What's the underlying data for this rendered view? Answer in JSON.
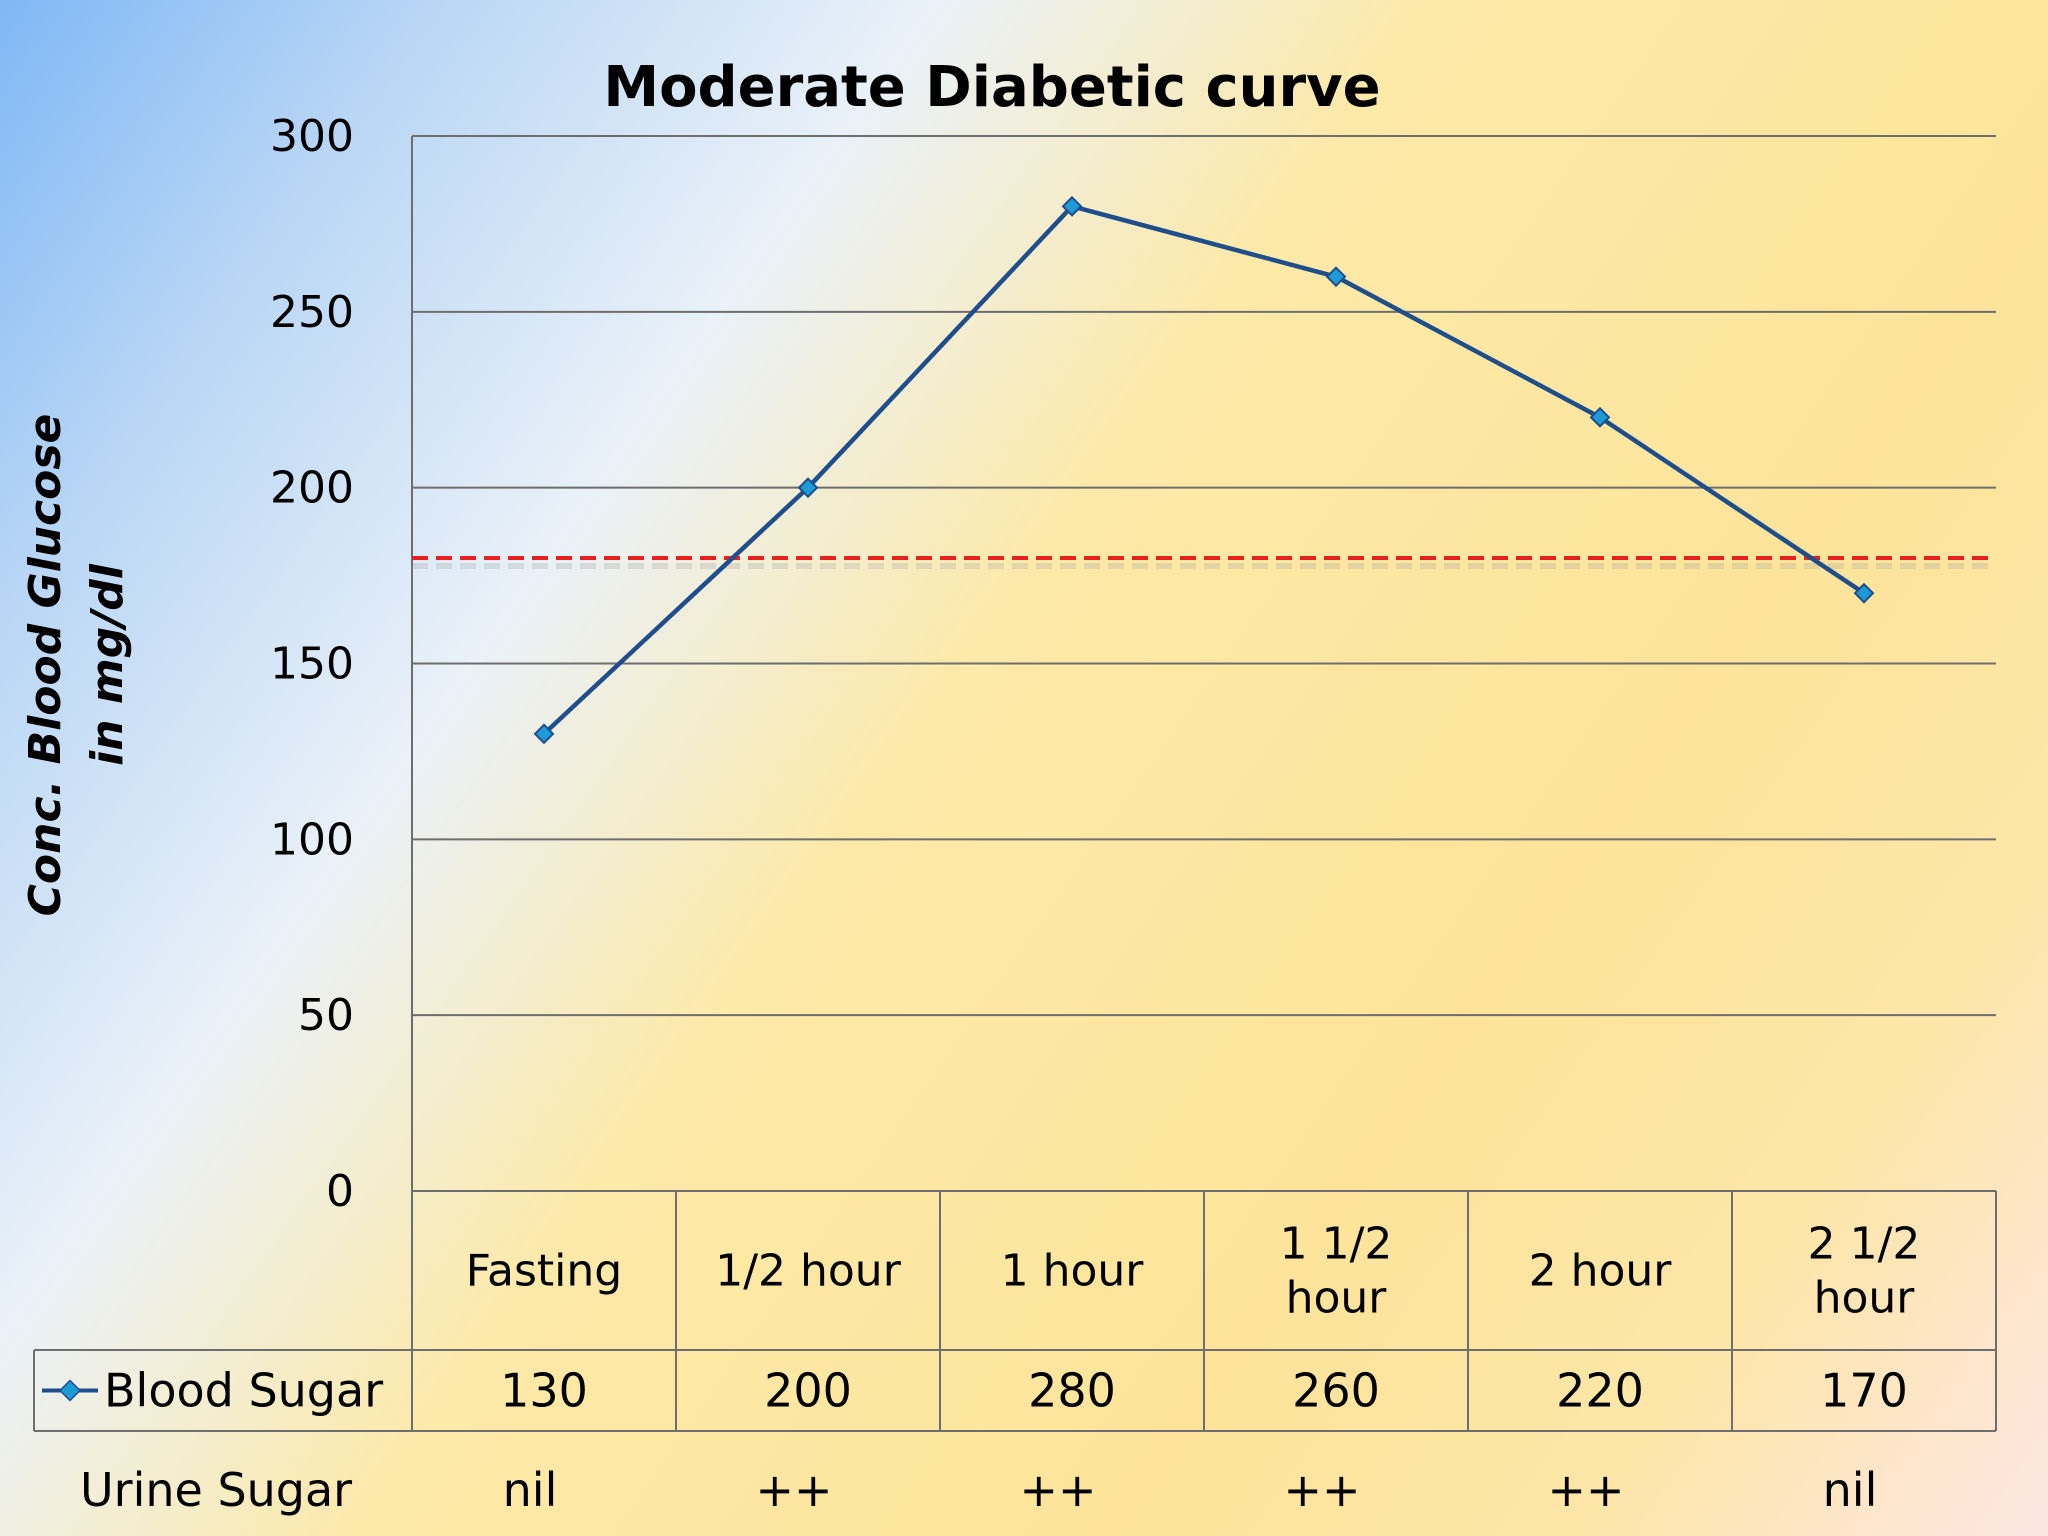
{
  "chart_data": {
    "type": "line",
    "title": "Moderate Diabetic curve",
    "ylabel_line1": "Conc.  Blood Glucose",
    "ylabel_line2": "in mg/dl",
    "ylim": [
      0,
      300
    ],
    "yticks": [
      "0",
      "50",
      "100",
      "150",
      "200",
      "250",
      "300"
    ],
    "ytick_values": [
      0,
      50,
      100,
      150,
      200,
      250,
      300
    ],
    "categories": [
      [
        "Fasting"
      ],
      [
        "1/2 hour"
      ],
      [
        "1 hour"
      ],
      [
        "1 1/2",
        "hour"
      ],
      [
        "2 hour"
      ],
      [
        "2 1/2",
        "hour"
      ]
    ],
    "series": [
      {
        "name": "Blood Sugar",
        "values": [
          130,
          200,
          280,
          260,
          220,
          170
        ],
        "color": "#1f4e8c",
        "marker_color": "#1e9ad6"
      }
    ],
    "threshold": {
      "value": 180,
      "color": "#e8201e"
    },
    "grid": true,
    "data_table": {
      "rows": [
        {
          "label": "Blood Sugar",
          "cells": [
            "130",
            "200",
            "280",
            "260",
            "220",
            "170"
          ]
        }
      ]
    },
    "extra_row": {
      "label": "Urine Sugar",
      "cells": [
        "nil",
        "++",
        "++",
        "++",
        "++",
        "nil"
      ]
    }
  }
}
